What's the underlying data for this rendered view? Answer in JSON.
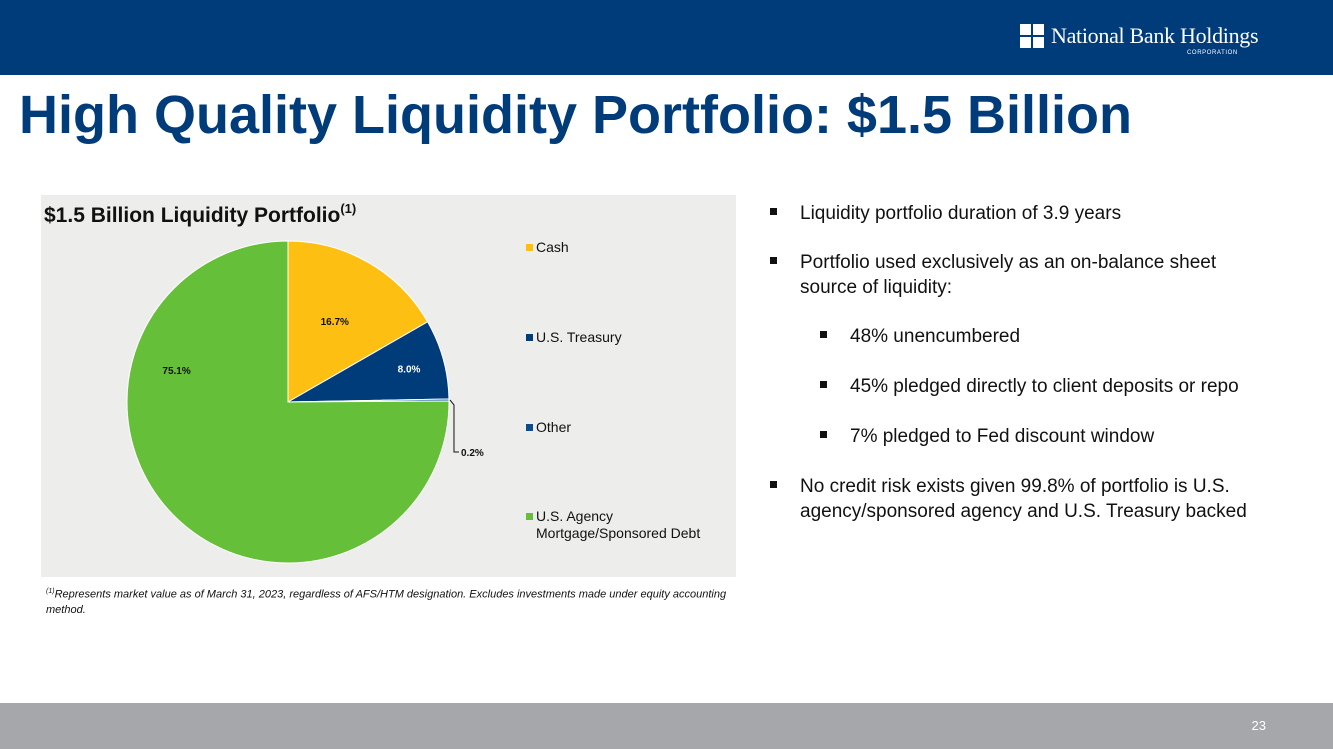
{
  "header": {
    "logo_name": "National Bank Holdings",
    "logo_sub": "CORPORATION",
    "bar_color": "#003b7a"
  },
  "page": {
    "title": "High Quality Liquidity Portfolio: $1.5 Billion",
    "page_number": "23"
  },
  "chart_data": {
    "type": "pie",
    "title": "$1.5 Billion Liquidity Portfolio",
    "title_superscript": "(1)",
    "start_angle_deg": 0,
    "direction": "clockwise",
    "slices": [
      {
        "name": "Cash",
        "value": 16.7,
        "label": "16.7%",
        "color": "#fdbf11"
      },
      {
        "name": "U.S. Treasury",
        "value": 8.0,
        "label": "8.0%",
        "color": "#003b7a"
      },
      {
        "name": "Other",
        "value": 0.2,
        "label": "0.2%",
        "color": "#0a4c8c"
      },
      {
        "name": "U.S. Agency Mortgage/Sponsored Debt",
        "value": 75.1,
        "label": "75.1%",
        "color": "#66bf38"
      }
    ],
    "legend": [
      "Cash",
      "U.S. Treasury",
      "Other",
      "U.S. Agency Mortgage/Sponsored Debt"
    ],
    "legend_position": "right"
  },
  "footnote": {
    "marker": "(1)",
    "text": "Represents market value as of March 31, 2023, regardless of AFS/HTM designation. Excludes investments made under equity accounting method."
  },
  "bullets": [
    {
      "text": "Liquidity portfolio duration of 3.9 years",
      "level": 1
    },
    {
      "text": "Portfolio used exclusively as an on-balance sheet source of liquidity:",
      "level": 1
    },
    {
      "text": "48% unencumbered",
      "level": 2
    },
    {
      "text": "45% pledged directly to client deposits or repo",
      "level": 2
    },
    {
      "text": "7% pledged to Fed discount window",
      "level": 2
    },
    {
      "text": "No credit risk exists given 99.8% of portfolio is U.S. agency/sponsored agency and U.S. Treasury backed",
      "level": 1
    }
  ]
}
